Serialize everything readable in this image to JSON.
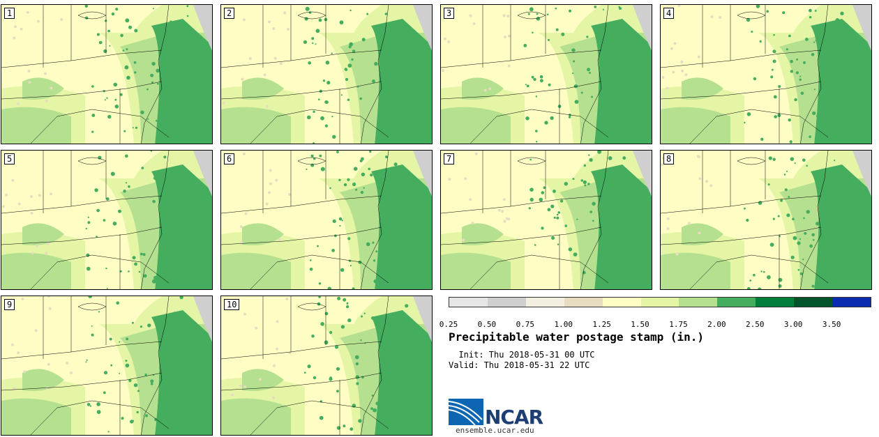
{
  "stamps": [
    "1",
    "2",
    "3",
    "4",
    "5",
    "6",
    "7",
    "8",
    "9",
    "10"
  ],
  "legend": {
    "colors": [
      "#e6e6e6",
      "#cfcfcf",
      "#f2efe0",
      "#e8dcc0",
      "#fdfdc4",
      "#e5f5a6",
      "#b5e08f",
      "#45ad5e",
      "#027f3b",
      "#02552a",
      "#0b2bb0"
    ],
    "labels": [
      "0.25",
      "0.50",
      "0.75",
      "1.00",
      "1.25",
      "1.50",
      "1.75",
      "2.00",
      "2.50",
      "3.00",
      "3.50"
    ]
  },
  "title": "Precipitable water postage stamp (in.)",
  "init": "  Init: Thu 2018-05-31 00 UTC",
  "valid": "Valid: Thu 2018-05-31 22 UTC",
  "logo": {
    "name": "NCAR",
    "url": "ensemble.ucar.edu"
  }
}
